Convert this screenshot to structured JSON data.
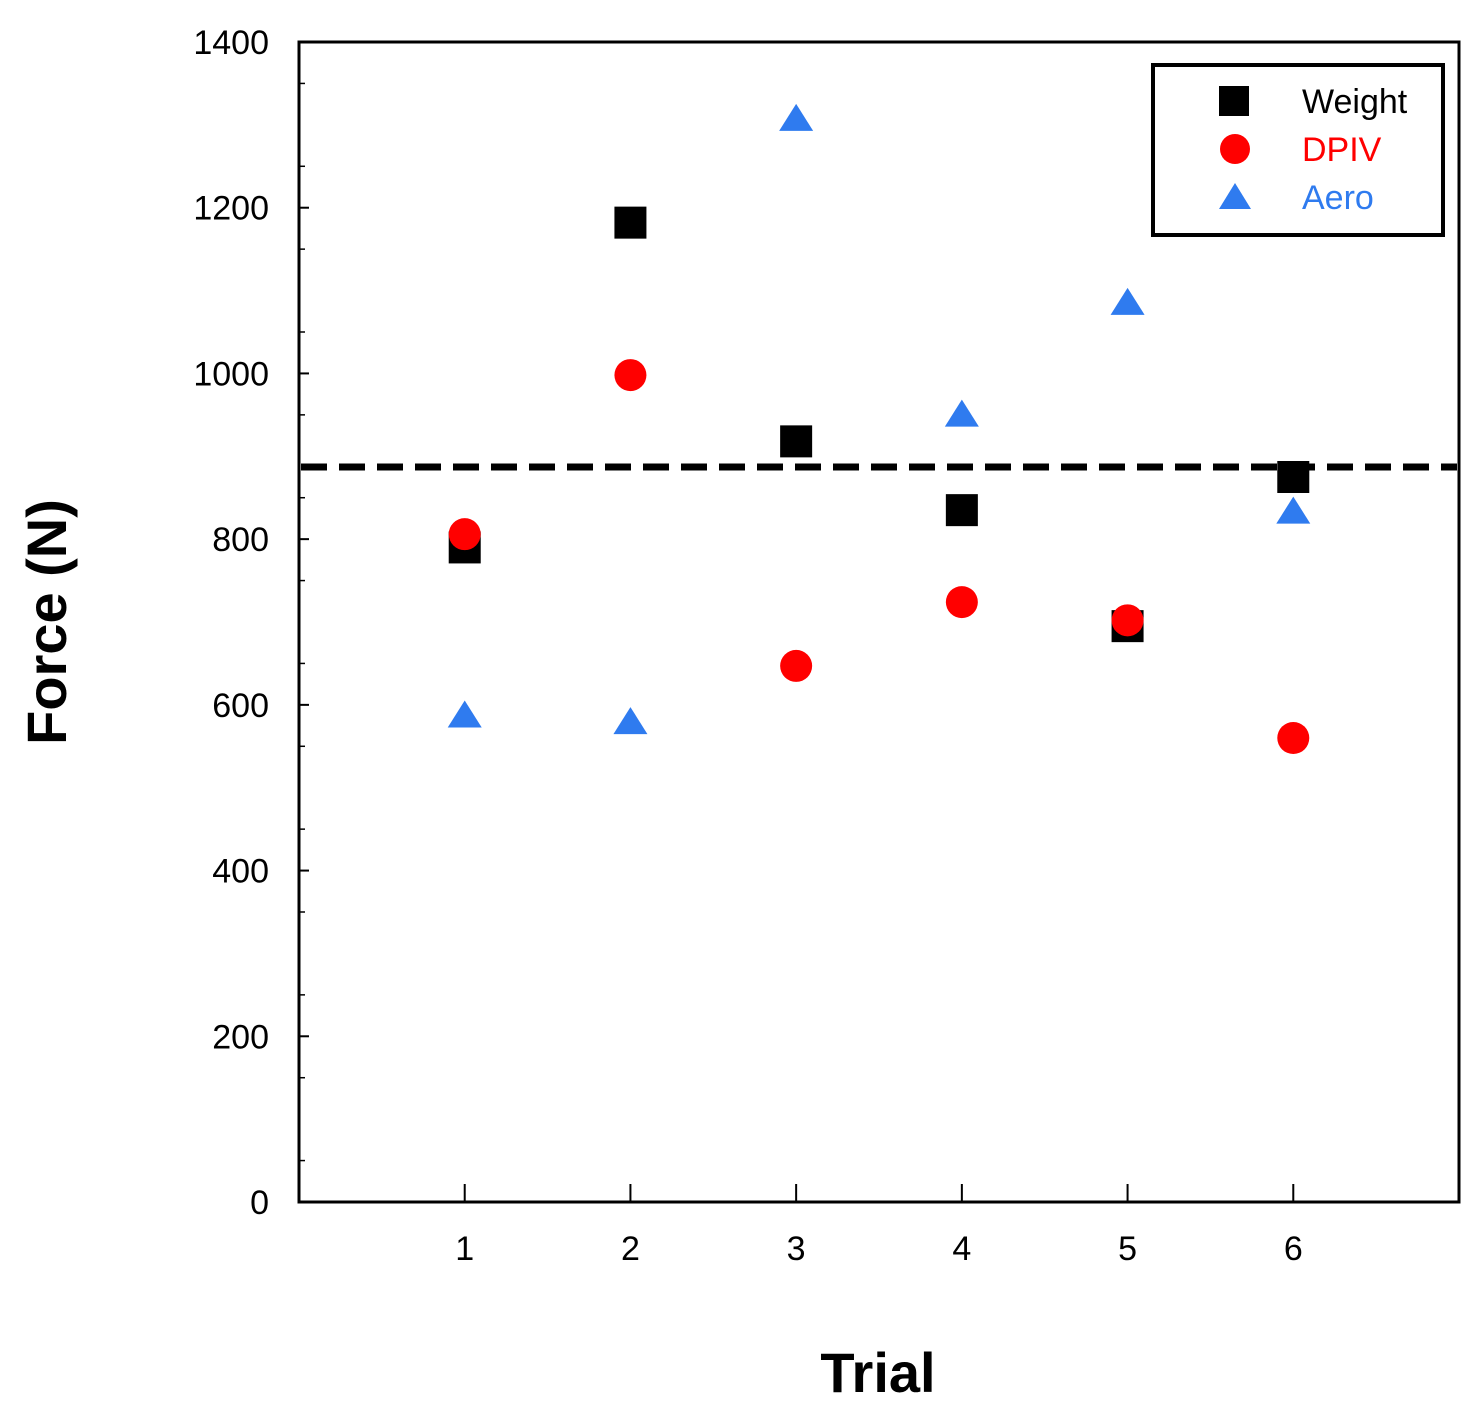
{
  "chart_data": {
    "type": "scatter",
    "title": "",
    "xlabel": "Trial",
    "ylabel": "Force (N)",
    "x": [
      1,
      2,
      3,
      4,
      5,
      6
    ],
    "xticks": [
      "1",
      "2",
      "3",
      "4",
      "5",
      "6"
    ],
    "xlim": [
      0,
      7
    ],
    "ylim": [
      0,
      1400
    ],
    "yticks": [
      "0",
      "200",
      "400",
      "600",
      "800",
      "1000",
      "1200",
      "1400"
    ],
    "ytick_values": [
      0,
      200,
      400,
      600,
      800,
      1000,
      1200,
      1400
    ],
    "grid": false,
    "legend_position": "top-right",
    "reference_line": {
      "value": 887,
      "style": "dashed",
      "color": "#000000"
    },
    "series": [
      {
        "name": "Weight",
        "marker": "square",
        "color": "#000000",
        "values": [
          790,
          1182,
          918,
          835,
          695,
          875
        ]
      },
      {
        "name": "DPIV",
        "marker": "circle",
        "color": "#ff0000",
        "values": [
          806,
          998,
          647,
          724,
          702,
          560
        ]
      },
      {
        "name": "Aero",
        "marker": "triangle",
        "color": "#2f7bef",
        "values": [
          586,
          578,
          1306,
          949,
          1084,
          832
        ]
      }
    ]
  }
}
